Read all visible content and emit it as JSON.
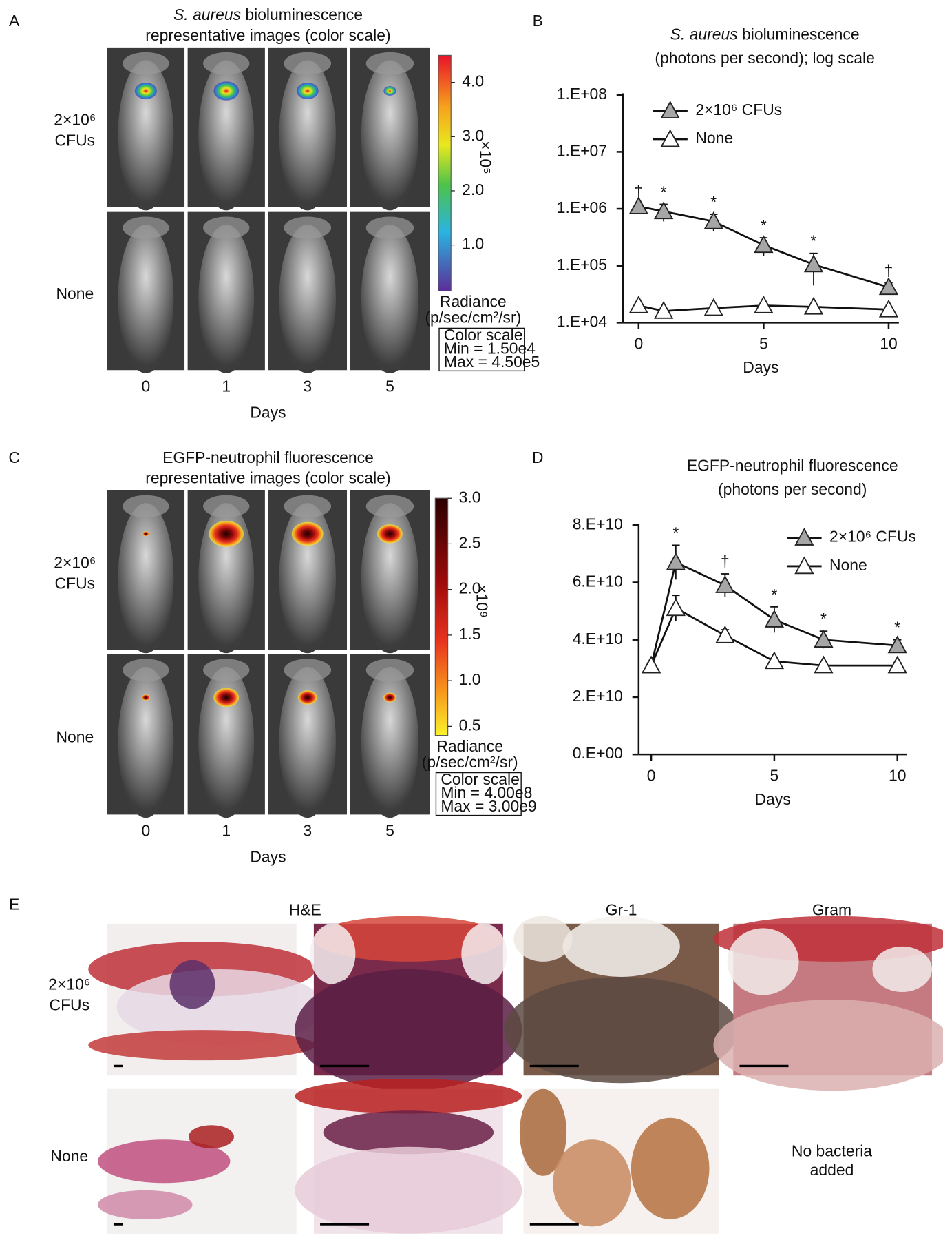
{
  "panels": [
    {
      "label": "A",
      "title": [
        "S. aureus",
        " bioluminescence"
      ],
      "subtitle": "representative images (color scale)",
      "rows": [
        [
          "2×10⁶",
          "CFUs"
        ],
        [
          "None"
        ]
      ],
      "days": [
        "0",
        "1",
        "3",
        "5"
      ],
      "xlabel": "Days",
      "colorbar": {
        "colormap": "rainbow",
        "clim": [
          0.15,
          4.5
        ],
        "ticks": [
          {
            "value": 1,
            "label": "1.0"
          },
          {
            "value": 2,
            "label": "2.0"
          },
          {
            "value": 3,
            "label": "3.0"
          },
          {
            "value": 4,
            "label": "4.0"
          }
        ],
        "multiplier": "×10⁵",
        "label": [
          "Radiance",
          "(p/sec/cm²/sr)"
        ],
        "box": [
          "Color scale",
          "Min = 1.50e4",
          "Max = 4.50e5"
        ]
      }
    },
    {
      "label": "C",
      "title": [
        "EGFP-neutrophil fluorescence"
      ],
      "subtitle": "representative images (color scale)",
      "rows": [
        [
          "2×10⁶",
          "CFUs"
        ],
        [
          "None"
        ]
      ],
      "days": [
        "0",
        "1",
        "3",
        "5"
      ],
      "xlabel": "Days",
      "colorbar": {
        "colormap": "heat",
        "clim": [
          0.4,
          3.0
        ],
        "ticks": [
          {
            "value": 0.5,
            "label": "0.5"
          },
          {
            "value": 1,
            "label": "1.0"
          },
          {
            "value": 1.5,
            "label": "1.5"
          },
          {
            "value": 2,
            "label": "2.0"
          },
          {
            "value": 2.5,
            "label": "2.5"
          },
          {
            "value": 3,
            "label": "3.0"
          }
        ],
        "multiplier": "×10⁹",
        "label": [
          "Radiance",
          "(p/sec/cm²/sr)"
        ],
        "box": [
          "Color scale",
          "Min = 4.00e8",
          "Max = 3.00e9"
        ]
      }
    }
  ],
  "chart_data": [
    {
      "type": "line",
      "panel_label": "B",
      "title": [
        "S. aureus",
        " bioluminescence"
      ],
      "title_italic_first": true,
      "subtitle": "(photons per second); log scale",
      "xlabel": "Days",
      "log_y": true,
      "x": [
        0,
        1,
        3,
        5,
        7,
        10
      ],
      "xlim": [
        -0.63,
        10.41
      ],
      "xticks": [
        0,
        5,
        10
      ],
      "ylim": [
        10000,
        100000000
      ],
      "yticks": [
        {
          "value": 10000,
          "label": "1.E+04"
        },
        {
          "value": 100000,
          "label": "1.E+05"
        },
        {
          "value": 1000000,
          "label": "1.E+06"
        },
        {
          "value": 10000000,
          "label": "1.E+07"
        },
        {
          "value": 100000000,
          "label": "1.E+08"
        }
      ],
      "legend_position": "upper left",
      "series": [
        {
          "name": "2×10⁶ CFUs",
          "color": "#a6a6a6",
          "values": [
            1100000,
            900000,
            600000,
            230000,
            105000,
            42000
          ],
          "errors": [
            150000,
            300000,
            200000,
            80000,
            60000,
            8000
          ]
        },
        {
          "name": "None",
          "color": "#ffffff",
          "values": [
            20000,
            16000,
            18000,
            20000,
            19000,
            17000
          ],
          "errors": [
            1500,
            1000,
            1200,
            1500,
            1200,
            1000
          ]
        }
      ],
      "annotations": [
        {
          "x": 0,
          "text": "†"
        },
        {
          "x": 1,
          "text": "*"
        },
        {
          "x": 3,
          "text": "*"
        },
        {
          "x": 5,
          "text": "*"
        },
        {
          "x": 7,
          "text": "*"
        },
        {
          "x": 10,
          "text": "†"
        }
      ]
    },
    {
      "type": "line",
      "panel_label": "D",
      "title": [
        "EGFP-neutrophil fluorescence"
      ],
      "title_italic_first": false,
      "subtitle": "(photons per second)",
      "xlabel": "Days",
      "log_y": false,
      "x": [
        0,
        1,
        3,
        5,
        7,
        10
      ],
      "xlim": [
        -0.51,
        10.38
      ],
      "xticks": [
        0,
        5,
        10
      ],
      "ylim": [
        0,
        80000000000
      ],
      "yticks": [
        {
          "value": 0,
          "label": "0.E+00"
        },
        {
          "value": 20000000000,
          "label": "2.E+10"
        },
        {
          "value": 40000000000,
          "label": "4.E+10"
        },
        {
          "value": 60000000000,
          "label": "6.E+10"
        },
        {
          "value": 80000000000,
          "label": "8.E+10"
        }
      ],
      "legend_position": "upper right",
      "series": [
        {
          "name": "2×10⁶ CFUs",
          "color": "#a6a6a6",
          "values": [
            31000000000,
            67000000000,
            59000000000,
            47000000000,
            40000000000,
            38000000000
          ],
          "errors": [
            1000000000,
            6000000000,
            4000000000,
            4500000000,
            3000000000,
            2000000000
          ]
        },
        {
          "name": "None",
          "color": "#ffffff",
          "values": [
            31000000000,
            51000000000,
            41500000000,
            32500000000,
            31000000000,
            31000000000
          ],
          "errors": [
            1000000000,
            4500000000,
            2000000000,
            1000000000,
            1000000000,
            1000000000
          ]
        }
      ],
      "annotations": [
        {
          "x": 1,
          "text": "*"
        },
        {
          "x": 3,
          "text": "†"
        },
        {
          "x": 5,
          "text": "*"
        },
        {
          "x": 7,
          "text": "*"
        },
        {
          "x": 10,
          "text": "*"
        }
      ]
    }
  ],
  "histology": {
    "label": "E",
    "columns": [
      "H&E",
      "Gr-1",
      "Gram"
    ],
    "rows": [
      [
        "2×10⁶",
        "CFUs"
      ],
      [
        "None"
      ]
    ],
    "note": [
      "No bacteria",
      "added"
    ]
  }
}
